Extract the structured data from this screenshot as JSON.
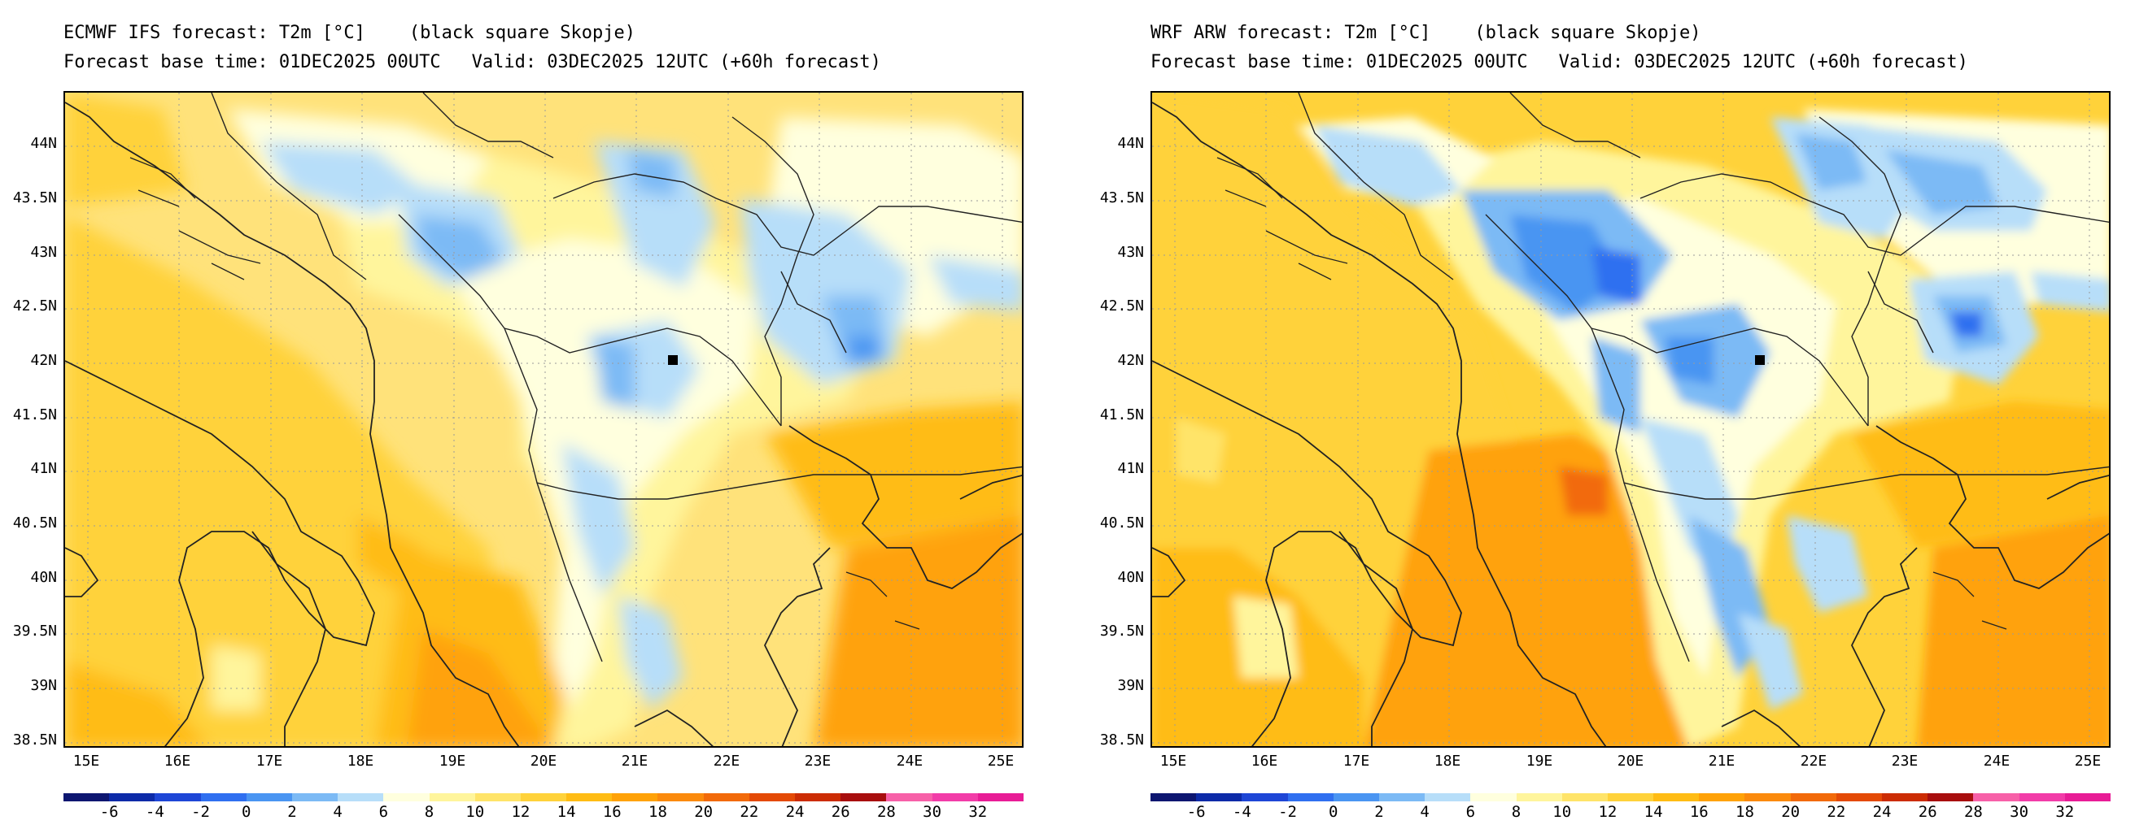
{
  "panels": [
    {
      "id": "ecmwf",
      "model_label": "ECMWF IFS forecast: T2m [°C]",
      "station_note": "(black square Skopje)",
      "base_time": "Forecast base time: 01DEC2025 00UTC",
      "valid": "Valid: 03DEC2025 12UTC (+60h forecast)"
    },
    {
      "id": "wrf",
      "model_label": "WRF ARW forecast: T2m [°C]",
      "station_note": "(black square Skopje)",
      "base_time": "Forecast base time: 01DEC2025 00UTC",
      "valid": "Valid: 03DEC2025 12UTC (+60h forecast)"
    }
  ],
  "chart_data": {
    "type": "map",
    "variable": "2 m temperature (°C)",
    "lat_labels": [
      "44N",
      "43.5N",
      "43N",
      "42.5N",
      "42N",
      "41.5N",
      "41N",
      "40.5N",
      "40N",
      "39.5N",
      "39N",
      "38.5N"
    ],
    "lat_values": [
      44,
      43.5,
      43,
      42.5,
      42,
      41.5,
      41,
      40.5,
      40,
      39.5,
      39,
      38.5
    ],
    "lon_labels": [
      "15E",
      "16E",
      "17E",
      "18E",
      "19E",
      "20E",
      "21E",
      "22E",
      "23E",
      "24E",
      "25E"
    ],
    "lon_values": [
      15,
      16,
      17,
      18,
      19,
      20,
      21,
      22,
      23,
      24,
      25
    ],
    "lon_range": [
      14.75,
      25.25
    ],
    "lat_range": [
      38.45,
      44.5
    ],
    "station": {
      "name": "Skopje",
      "lon": 21.43,
      "lat": 42.0
    },
    "colorbar": {
      "labels": [
        "-6",
        "-4",
        "-2",
        "0",
        "2",
        "4",
        "6",
        "8",
        "10",
        "12",
        "14",
        "16",
        "18",
        "20",
        "22",
        "24",
        "26",
        "28",
        "30",
        "32"
      ],
      "colors": [
        "#0d1670",
        "#0c2aa8",
        "#1e46d6",
        "#2f6ff0",
        "#4a95f2",
        "#7cbaf5",
        "#b7def9",
        "#ffffde",
        "#fff59c",
        "#ffe469",
        "#ffd23a",
        "#ffbc14",
        "#ffa208",
        "#fb8a0c",
        "#f26a0a",
        "#e44a06",
        "#cc2c04",
        "#a80e0e",
        "#f760a8",
        "#f23ca8",
        "#e81c96"
      ]
    }
  }
}
